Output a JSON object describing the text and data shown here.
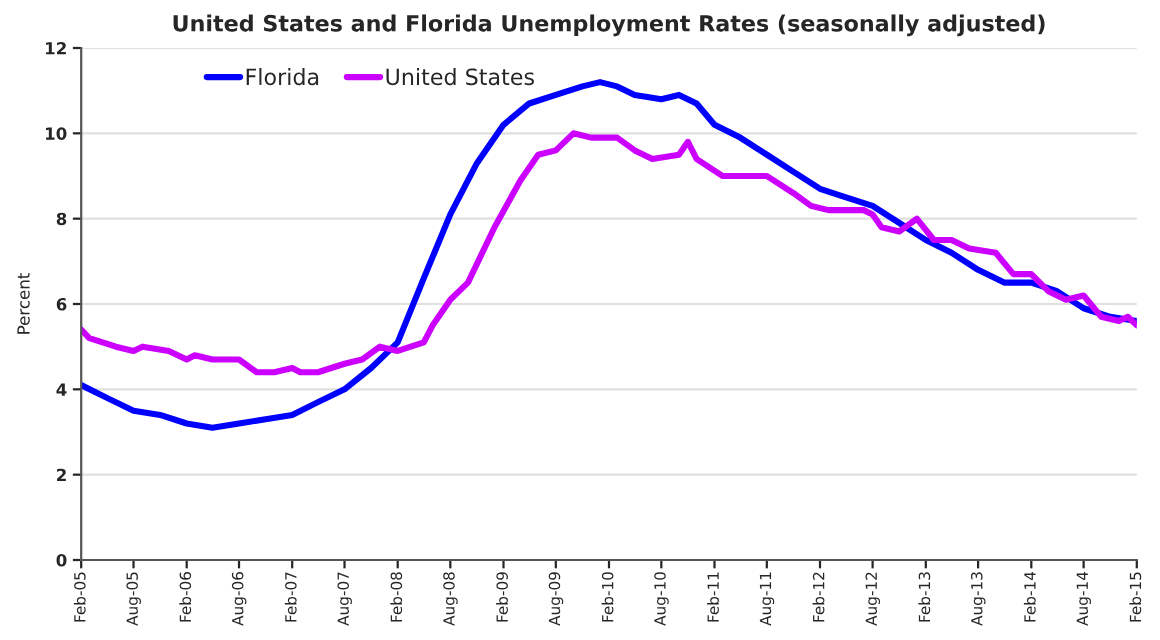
{
  "chart_data": {
    "type": "line",
    "title": "United States and Florida Unemployment Rates (seasonally adjusted)",
    "ylabel": "Percent",
    "series": [
      {
        "name": "Florida",
        "color": "#0000ff",
        "x": [
          "2005-02",
          "2005-05",
          "2005-08",
          "2005-11",
          "2006-02",
          "2006-05",
          "2006-08",
          "2006-11",
          "2007-02",
          "2007-05",
          "2007-08",
          "2007-11",
          "2008-02",
          "2008-05",
          "2008-08",
          "2008-11",
          "2009-02",
          "2009-05",
          "2009-08",
          "2009-11",
          "2010-01",
          "2010-03",
          "2010-05",
          "2010-08",
          "2010-10",
          "2010-12",
          "2011-02",
          "2011-05",
          "2011-08",
          "2011-11",
          "2012-02",
          "2012-05",
          "2012-08",
          "2012-11",
          "2013-02",
          "2013-05",
          "2013-08",
          "2013-11",
          "2014-02",
          "2014-05",
          "2014-08",
          "2014-11",
          "2015-02"
        ],
        "values": [
          4.1,
          3.8,
          3.5,
          3.4,
          3.2,
          3.1,
          3.2,
          3.3,
          3.4,
          3.7,
          4.0,
          4.5,
          5.1,
          6.6,
          8.1,
          9.3,
          10.2,
          10.7,
          10.9,
          11.1,
          11.2,
          11.1,
          10.9,
          10.8,
          10.9,
          10.7,
          10.2,
          9.9,
          9.5,
          9.1,
          8.7,
          8.5,
          8.3,
          7.9,
          7.5,
          7.2,
          6.8,
          6.5,
          6.5,
          6.3,
          5.9,
          5.7,
          5.6
        ]
      },
      {
        "name": "United States",
        "color": "#cc00ff",
        "x": [
          "2005-02",
          "2005-03",
          "2005-06",
          "2005-08",
          "2005-09",
          "2005-12",
          "2006-02",
          "2006-03",
          "2006-05",
          "2006-08",
          "2006-10",
          "2006-12",
          "2007-02",
          "2007-03",
          "2007-05",
          "2007-08",
          "2007-10",
          "2007-12",
          "2008-02",
          "2008-05",
          "2008-06",
          "2008-08",
          "2008-10",
          "2009-01",
          "2009-04",
          "2009-06",
          "2009-08",
          "2009-10",
          "2009-12",
          "2010-03",
          "2010-05",
          "2010-07",
          "2010-10",
          "2010-11",
          "2010-12",
          "2011-03",
          "2011-08",
          "2011-11",
          "2012-01",
          "2012-03",
          "2012-07",
          "2012-08",
          "2012-09",
          "2012-11",
          "2013-01",
          "2013-03",
          "2013-05",
          "2013-07",
          "2013-10",
          "2013-12",
          "2014-02",
          "2014-04",
          "2014-06",
          "2014-08",
          "2014-10",
          "2014-12",
          "2015-01",
          "2015-02"
        ],
        "values": [
          5.4,
          5.2,
          5.0,
          4.9,
          5.0,
          4.9,
          4.7,
          4.8,
          4.7,
          4.7,
          4.4,
          4.4,
          4.5,
          4.4,
          4.4,
          4.6,
          4.7,
          5.0,
          4.9,
          5.1,
          5.5,
          6.1,
          6.5,
          7.8,
          8.9,
          9.5,
          9.6,
          10.0,
          9.9,
          9.9,
          9.6,
          9.4,
          9.5,
          9.8,
          9.4,
          9.0,
          9.0,
          8.6,
          8.3,
          8.2,
          8.2,
          8.1,
          7.8,
          7.7,
          8.0,
          7.5,
          7.5,
          7.3,
          7.2,
          6.7,
          6.7,
          6.3,
          6.1,
          6.2,
          5.7,
          5.6,
          5.7,
          5.5
        ]
      }
    ],
    "xlim": [
      "2005-02",
      "2015-02"
    ],
    "xticks": [
      {
        "value": "2005-02",
        "label": "Feb-05"
      },
      {
        "value": "2005-08",
        "label": "Aug-05"
      },
      {
        "value": "2006-02",
        "label": "Feb-06"
      },
      {
        "value": "2006-08",
        "label": "Aug-06"
      },
      {
        "value": "2007-02",
        "label": "Feb-07"
      },
      {
        "value": "2007-08",
        "label": "Aug-07"
      },
      {
        "value": "2008-02",
        "label": "Feb-08"
      },
      {
        "value": "2008-08",
        "label": "Aug-08"
      },
      {
        "value": "2009-02",
        "label": "Feb-09"
      },
      {
        "value": "2009-08",
        "label": "Aug-09"
      },
      {
        "value": "2010-02",
        "label": "Feb-10"
      },
      {
        "value": "2010-08",
        "label": "Aug-10"
      },
      {
        "value": "2011-02",
        "label": "Feb-11"
      },
      {
        "value": "2011-08",
        "label": "Aug-11"
      },
      {
        "value": "2012-02",
        "label": "Feb-12"
      },
      {
        "value": "2012-08",
        "label": "Aug-12"
      },
      {
        "value": "2013-02",
        "label": "Feb-13"
      },
      {
        "value": "2013-08",
        "label": "Aug-13"
      },
      {
        "value": "2014-02",
        "label": "Feb-14"
      },
      {
        "value": "2014-08",
        "label": "Aug-14"
      },
      {
        "value": "2015-02",
        "label": "Feb-15"
      }
    ],
    "ylim": [
      0,
      12
    ],
    "yticks": [
      0,
      2,
      4,
      6,
      8,
      10,
      12
    ],
    "grid": "y",
    "legend": "top left",
    "marker": "none",
    "line_style": "solid"
  }
}
